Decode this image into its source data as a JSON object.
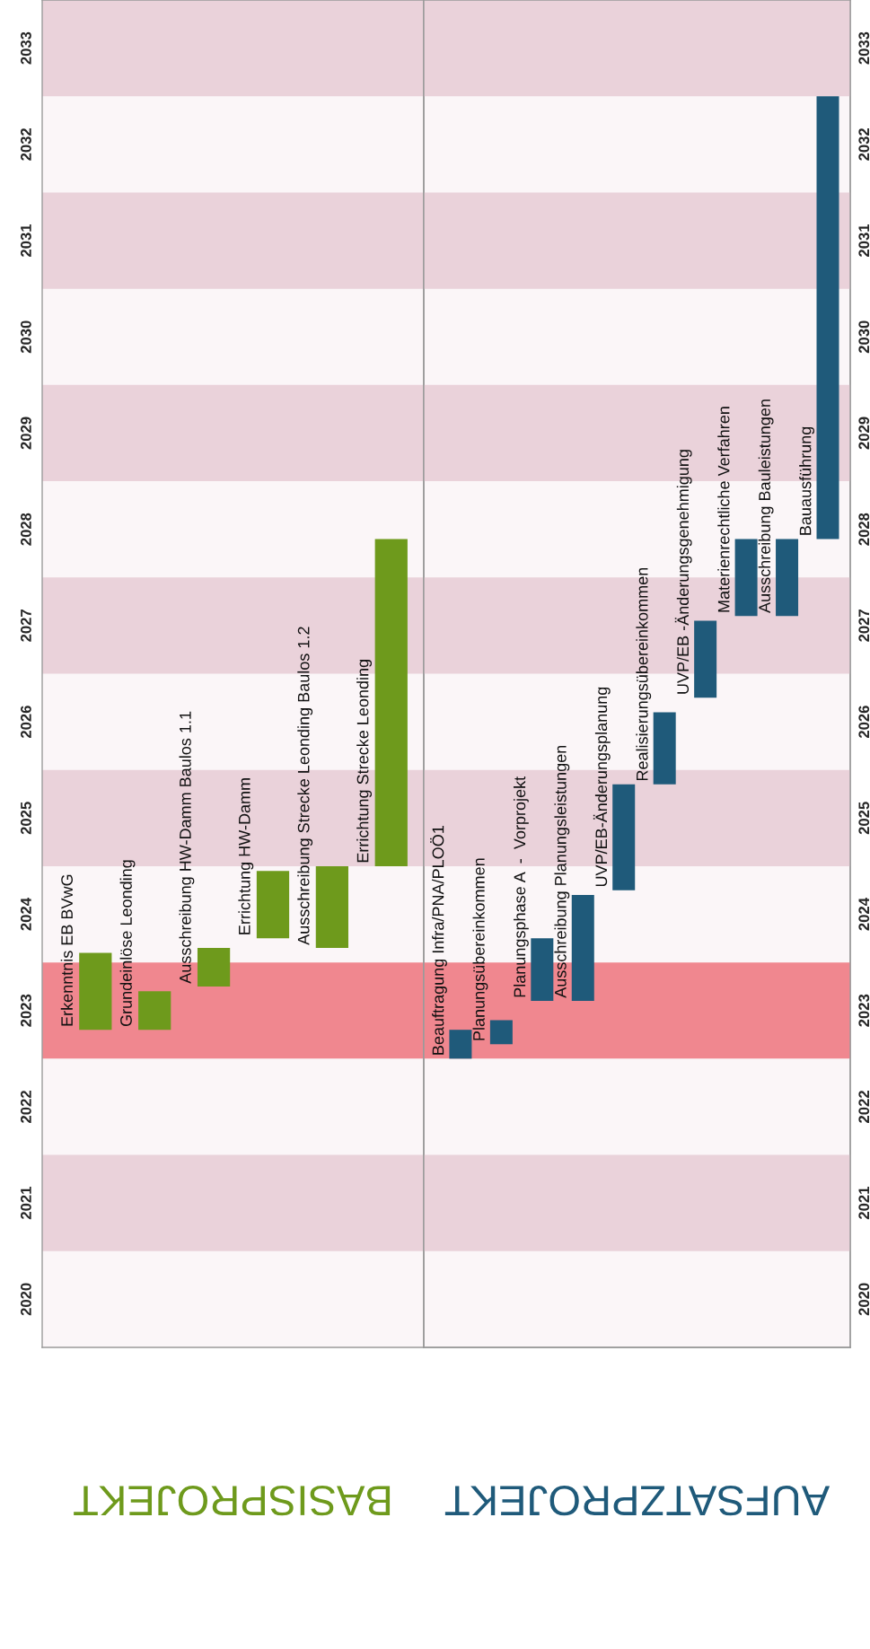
{
  "chart_data": [
    {
      "type": "bar",
      "title": "BASISPROJEKT",
      "categories": [
        "Erkenntnis EB BVwG",
        "Grundeinlöse Leonding",
        "Ausschreibung HW-Damm Baulos 1.1",
        "Errichtung HW-Damm",
        "Ausschreibung Strecke Leonding Baulos 1.2",
        "Errichtung Strecke Leonding"
      ],
      "series": [
        {
          "color": "#6e9a1c",
          "base": [
            2023.3,
            2023.3,
            2023.75,
            2024.25,
            2024.15,
            2025.0
          ],
          "values": [
            0.8,
            0.4,
            0.4,
            0.7,
            0.85,
            3.4
          ]
        }
      ],
      "ylim": [
        2020,
        2034
      ],
      "yticks": [
        {
          "value": 2020.5,
          "label": "2020"
        },
        {
          "value": 2021.5,
          "label": "2021"
        },
        {
          "value": 2022.5,
          "label": "2022"
        },
        {
          "value": 2023.5,
          "label": "2023"
        },
        {
          "value": 2024.5,
          "label": "2024"
        },
        {
          "value": 2025.5,
          "label": "2025"
        },
        {
          "value": 2026.5,
          "label": "2026"
        },
        {
          "value": 2027.5,
          "label": "2027"
        },
        {
          "value": 2028.5,
          "label": "2028"
        },
        {
          "value": 2029.5,
          "label": "2029"
        },
        {
          "value": 2030.5,
          "label": "2030"
        },
        {
          "value": 2031.5,
          "label": "2031"
        },
        {
          "value": 2032.5,
          "label": "2032"
        },
        {
          "value": 2033.5,
          "label": "2033"
        }
      ],
      "bands": [
        {
          "axis": "y",
          "from": 2021,
          "to": 2022,
          "color": "#ead2da"
        },
        {
          "axis": "y",
          "from": 2023,
          "to": 2024,
          "color": "#f0878f"
        },
        {
          "axis": "y",
          "from": 2025,
          "to": 2026,
          "color": "#ead2da"
        },
        {
          "axis": "y",
          "from": 2027,
          "to": 2028,
          "color": "#ead2da"
        },
        {
          "axis": "y",
          "from": 2029,
          "to": 2030,
          "color": "#ead2da"
        },
        {
          "axis": "y",
          "from": 2031,
          "to": 2032,
          "color": "#ead2da"
        },
        {
          "axis": "y",
          "from": 2033,
          "to": 2034,
          "color": "#ead2da"
        }
      ]
    },
    {
      "type": "bar",
      "title": "AUFSATZPROJEKT",
      "categories": [
        "Beauftragung Infra/PNA/PLOÖ1",
        "Planungsübereinkommen",
        "Planungsphase A  -  Vorprojekt",
        "Ausschreibung Planungsleistungen",
        "UVP/EB-Änderungsplanung",
        "Realisierungsübereinkommen",
        "UVP/EB -Änderungsgenehmigung",
        "Materienrechtliche Verfahren",
        "Ausschreibung Bauleistungen",
        "Bauausführung"
      ],
      "series": [
        {
          "color": "#1f5a7a",
          "axis": "y2",
          "base": [
            2023.0,
            2023.15,
            2023.6,
            2023.6,
            2024.75,
            2025.85,
            2026.75,
            2027.6,
            2027.6,
            2028.4
          ],
          "values": [
            0.3,
            0.25,
            0.65,
            1.1,
            1.1,
            0.75,
            0.8,
            0.8,
            0.8,
            4.6
          ]
        }
      ],
      "y2lim": [
        2020,
        2034
      ],
      "y2ticks": [
        {
          "value": 2020.5,
          "label": "2020"
        },
        {
          "value": 2021.5,
          "label": "2021"
        },
        {
          "value": 2022.5,
          "label": "2022"
        },
        {
          "value": 2023.5,
          "label": "2023"
        },
        {
          "value": 2024.5,
          "label": "2024"
        },
        {
          "value": 2025.5,
          "label": "2025"
        },
        {
          "value": 2026.5,
          "label": "2026"
        },
        {
          "value": 2027.5,
          "label": "2027"
        },
        {
          "value": 2028.5,
          "label": "2028"
        },
        {
          "value": 2029.5,
          "label": "2029"
        },
        {
          "value": 2030.5,
          "label": "2030"
        },
        {
          "value": 2031.5,
          "label": "2031"
        },
        {
          "value": 2032.5,
          "label": "2032"
        },
        {
          "value": 2033.5,
          "label": "2033"
        }
      ],
      "bands": [
        {
          "axis": "y2",
          "from": 2021,
          "to": 2022,
          "color": "#ead2da"
        },
        {
          "axis": "y2",
          "from": 2023,
          "to": 2024,
          "color": "#f0878f"
        },
        {
          "axis": "y2",
          "from": 2025,
          "to": 2026,
          "color": "#ead2da"
        },
        {
          "axis": "y2",
          "from": 2027,
          "to": 2028,
          "color": "#ead2da"
        },
        {
          "axis": "y2",
          "from": 2029,
          "to": 2030,
          "color": "#ead2da"
        },
        {
          "axis": "y2",
          "from": 2031,
          "to": 2032,
          "color": "#ead2da"
        },
        {
          "axis": "y2",
          "from": 2033,
          "to": 2034,
          "color": "#ead2da"
        }
      ]
    }
  ]
}
